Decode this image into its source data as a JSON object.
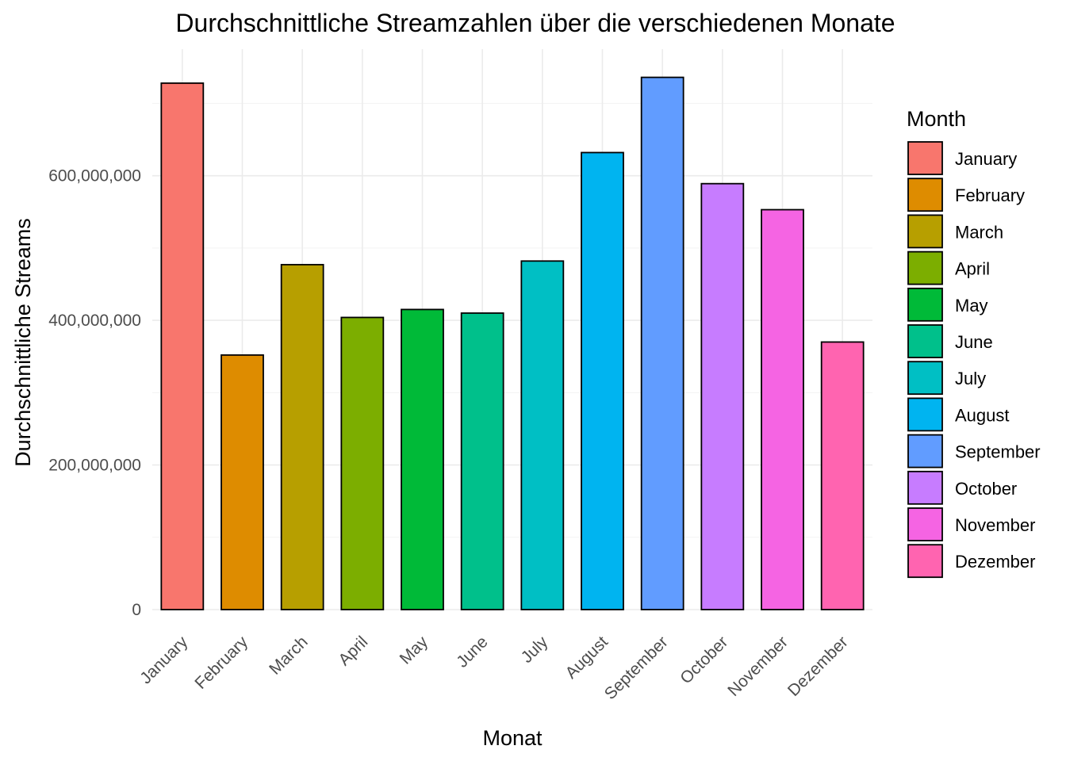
{
  "chart_data": {
    "type": "bar",
    "title": "Durchschnittliche Streamzahlen über die verschiedenen Monate",
    "xlabel": "Monat",
    "ylabel": "Durchschnittliche Streams",
    "categories": [
      "January",
      "February",
      "March",
      "April",
      "May",
      "June",
      "July",
      "August",
      "September",
      "October",
      "November",
      "Dezember"
    ],
    "values": [
      728000000,
      352000000,
      477000000,
      404000000,
      415000000,
      410000000,
      482000000,
      632000000,
      736000000,
      589000000,
      553000000,
      370000000
    ],
    "colors": [
      "#F8766D",
      "#DE8C00",
      "#B79F00",
      "#7CAE00",
      "#00BA38",
      "#00C08B",
      "#00BFC4",
      "#00B4F0",
      "#619CFF",
      "#C77CFF",
      "#F564E3",
      "#FF64B0"
    ],
    "ylim": [
      0,
      775000000
    ],
    "yticks": [
      0,
      200000000,
      400000000,
      600000000
    ],
    "ytick_labels": [
      "0",
      "200,000,000",
      "400,000,000",
      "600,000,000"
    ],
    "grid": true,
    "legend": {
      "title": "Month",
      "position": "right",
      "entries": [
        "January",
        "February",
        "March",
        "April",
        "May",
        "June",
        "July",
        "August",
        "September",
        "October",
        "November",
        "Dezember"
      ]
    }
  }
}
